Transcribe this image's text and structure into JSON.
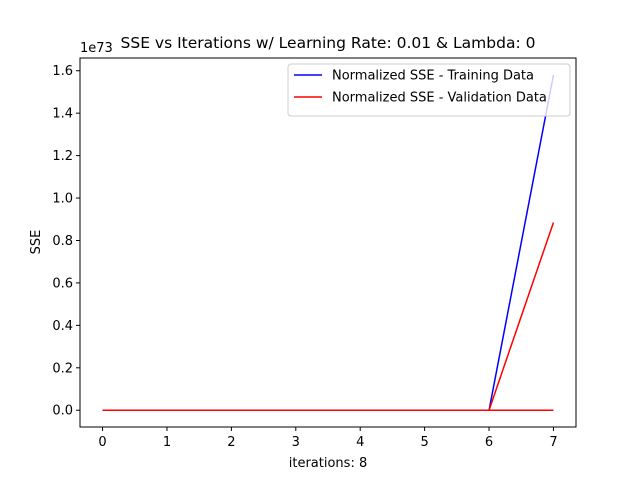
{
  "chart_data": {
    "type": "line",
    "title": "SSE vs Iterations w/ Learning Rate: 0.01 & Lambda: 0",
    "xlabel": "iterations: 8",
    "ylabel": "SSE",
    "y_offset_text": "1e73",
    "x_ticks": [
      "0",
      "1",
      "2",
      "3",
      "4",
      "5",
      "6",
      "7"
    ],
    "y_ticks": [
      "0.0",
      "0.2",
      "0.4",
      "0.6",
      "0.8",
      "1.0",
      "1.2",
      "1.4",
      "1.6"
    ],
    "xlim": [
      -0.35,
      7.35
    ],
    "ylim": [
      -0.079,
      1.66
    ],
    "legend_position": "top-right",
    "grid": false,
    "series": [
      {
        "name": "Normalized SSE - Training Data",
        "color": "#0000ff",
        "x": [
          0,
          1,
          2,
          3,
          4,
          5,
          6,
          7
        ],
        "y": [
          0,
          0,
          0,
          0,
          0,
          0,
          0,
          1.58
        ]
      },
      {
        "name": "Normalized SSE - Validation Data",
        "color": "#ff0000",
        "x": [
          0,
          1,
          2,
          3,
          4,
          5,
          6,
          7
        ],
        "y": [
          0,
          0,
          0,
          0,
          0,
          0,
          0,
          0.885
        ]
      },
      {
        "name": "",
        "color": "#ff0000",
        "x": [
          0,
          1,
          2,
          3,
          4,
          5,
          6,
          7
        ],
        "y": [
          0,
          0,
          0,
          0,
          0,
          0,
          0,
          0
        ]
      }
    ]
  }
}
